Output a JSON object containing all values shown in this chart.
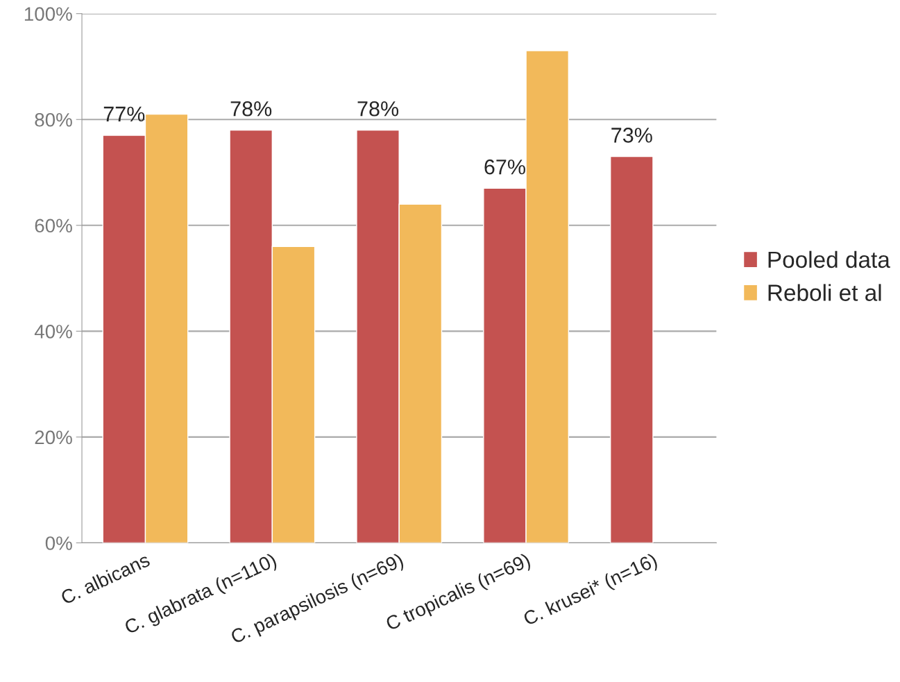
{
  "chart_data": {
    "type": "bar",
    "categories": [
      "C. albicans",
      "C. glabrata (n=110)",
      "C. parapsilosis (n=69)",
      "C tropicalis (n=69)",
      "C. krusei* (n=16)"
    ],
    "series": [
      {
        "name": "Pooled data",
        "color": "#c45250",
        "values": [
          77,
          78,
          78,
          67,
          73
        ],
        "value_labels": [
          "77%",
          "78%",
          "78%",
          "67%",
          "73%"
        ]
      },
      {
        "name": "Reboli et al",
        "color": "#f2b95a",
        "values": [
          81,
          56,
          64,
          93,
          null
        ]
      }
    ],
    "ylim": [
      0,
      100
    ],
    "yticks": [
      {
        "value": 0,
        "label": "0%"
      },
      {
        "value": 20,
        "label": "20%"
      },
      {
        "value": 40,
        "label": "40%"
      },
      {
        "value": 60,
        "label": "60%"
      },
      {
        "value": 80,
        "label": "80%"
      },
      {
        "value": 100,
        "label": "100%"
      }
    ],
    "grid": "y",
    "legend": "right"
  }
}
